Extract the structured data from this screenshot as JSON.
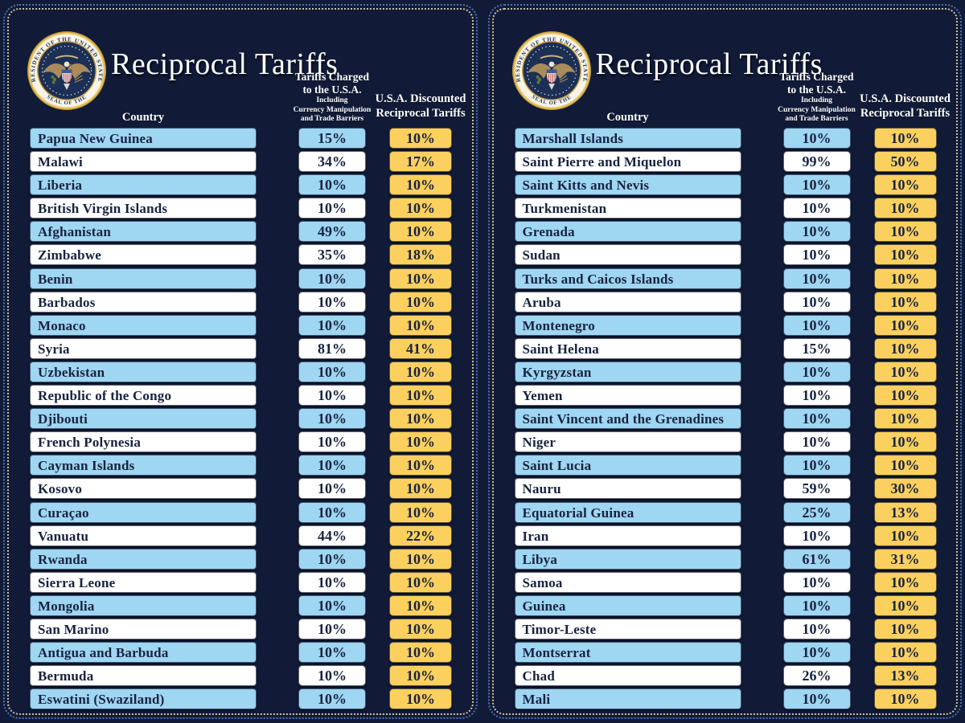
{
  "title": "Reciprocal Tariffs",
  "headers": {
    "country": "Country",
    "charged_line1": "Tariffs Charged",
    "charged_line2": "to the U.S.A.",
    "charged_sub1": "Including",
    "charged_sub2": "Currency Manipulation",
    "charged_sub3": "and Trade Barriers",
    "discounted_line1": "U.S.A. Discounted",
    "discounted_line2": "Reciprocal Tariffs"
  },
  "seal": {
    "ring_text_top": "PRESIDENT OF THE UNITED STATES",
    "ring_text_bottom": "SEAL OF THE"
  },
  "colors": {
    "background": "#111b38",
    "row_blue": "#9fd6f2",
    "row_white": "#ffffff",
    "cell_gold": "#fbd05e",
    "text_navy": "#17223f",
    "border_dots_blue": "#4e73ad",
    "border_dots_gold": "#d3c197"
  },
  "chart_data": [
    {
      "type": "table",
      "title": "Reciprocal Tariffs",
      "columns": [
        "Country",
        "Tariffs Charged to the U.S.A. Including Currency Manipulation and Trade Barriers",
        "U.S.A. Discounted Reciprocal Tariffs"
      ],
      "rows": [
        [
          "Papua New Guinea",
          "15%",
          "10%"
        ],
        [
          "Malawi",
          "34%",
          "17%"
        ],
        [
          "Liberia",
          "10%",
          "10%"
        ],
        [
          "British Virgin Islands",
          "10%",
          "10%"
        ],
        [
          "Afghanistan",
          "49%",
          "10%"
        ],
        [
          "Zimbabwe",
          "35%",
          "18%"
        ],
        [
          "Benin",
          "10%",
          "10%"
        ],
        [
          "Barbados",
          "10%",
          "10%"
        ],
        [
          "Monaco",
          "10%",
          "10%"
        ],
        [
          "Syria",
          "81%",
          "41%"
        ],
        [
          "Uzbekistan",
          "10%",
          "10%"
        ],
        [
          "Republic of the Congo",
          "10%",
          "10%"
        ],
        [
          "Djibouti",
          "10%",
          "10%"
        ],
        [
          "French Polynesia",
          "10%",
          "10%"
        ],
        [
          "Cayman Islands",
          "10%",
          "10%"
        ],
        [
          "Kosovo",
          "10%",
          "10%"
        ],
        [
          "Curaçao",
          "10%",
          "10%"
        ],
        [
          "Vanuatu",
          "44%",
          "22%"
        ],
        [
          "Rwanda",
          "10%",
          "10%"
        ],
        [
          "Sierra Leone",
          "10%",
          "10%"
        ],
        [
          "Mongolia",
          "10%",
          "10%"
        ],
        [
          "San Marino",
          "10%",
          "10%"
        ],
        [
          "Antigua and Barbuda",
          "10%",
          "10%"
        ],
        [
          "Bermuda",
          "10%",
          "10%"
        ],
        [
          "Eswatini (Swaziland)",
          "10%",
          "10%"
        ]
      ]
    },
    {
      "type": "table",
      "title": "Reciprocal Tariffs",
      "columns": [
        "Country",
        "Tariffs Charged to the U.S.A. Including Currency Manipulation and Trade Barriers",
        "U.S.A. Discounted Reciprocal Tariffs"
      ],
      "rows": [
        [
          "Marshall Islands",
          "10%",
          "10%"
        ],
        [
          "Saint Pierre and Miquelon",
          "99%",
          "50%"
        ],
        [
          "Saint Kitts and Nevis",
          "10%",
          "10%"
        ],
        [
          "Turkmenistan",
          "10%",
          "10%"
        ],
        [
          "Grenada",
          "10%",
          "10%"
        ],
        [
          "Sudan",
          "10%",
          "10%"
        ],
        [
          "Turks and Caicos Islands",
          "10%",
          "10%"
        ],
        [
          "Aruba",
          "10%",
          "10%"
        ],
        [
          "Montenegro",
          "10%",
          "10%"
        ],
        [
          "Saint Helena",
          "15%",
          "10%"
        ],
        [
          "Kyrgyzstan",
          "10%",
          "10%"
        ],
        [
          "Yemen",
          "10%",
          "10%"
        ],
        [
          "Saint Vincent and the Grenadines",
          "10%",
          "10%"
        ],
        [
          "Niger",
          "10%",
          "10%"
        ],
        [
          "Saint Lucia",
          "10%",
          "10%"
        ],
        [
          "Nauru",
          "59%",
          "30%"
        ],
        [
          "Equatorial Guinea",
          "25%",
          "13%"
        ],
        [
          "Iran",
          "10%",
          "10%"
        ],
        [
          "Libya",
          "61%",
          "31%"
        ],
        [
          "Samoa",
          "10%",
          "10%"
        ],
        [
          "Guinea",
          "10%",
          "10%"
        ],
        [
          "Timor-Leste",
          "10%",
          "10%"
        ],
        [
          "Montserrat",
          "10%",
          "10%"
        ],
        [
          "Chad",
          "26%",
          "13%"
        ],
        [
          "Mali",
          "10%",
          "10%"
        ]
      ]
    }
  ]
}
